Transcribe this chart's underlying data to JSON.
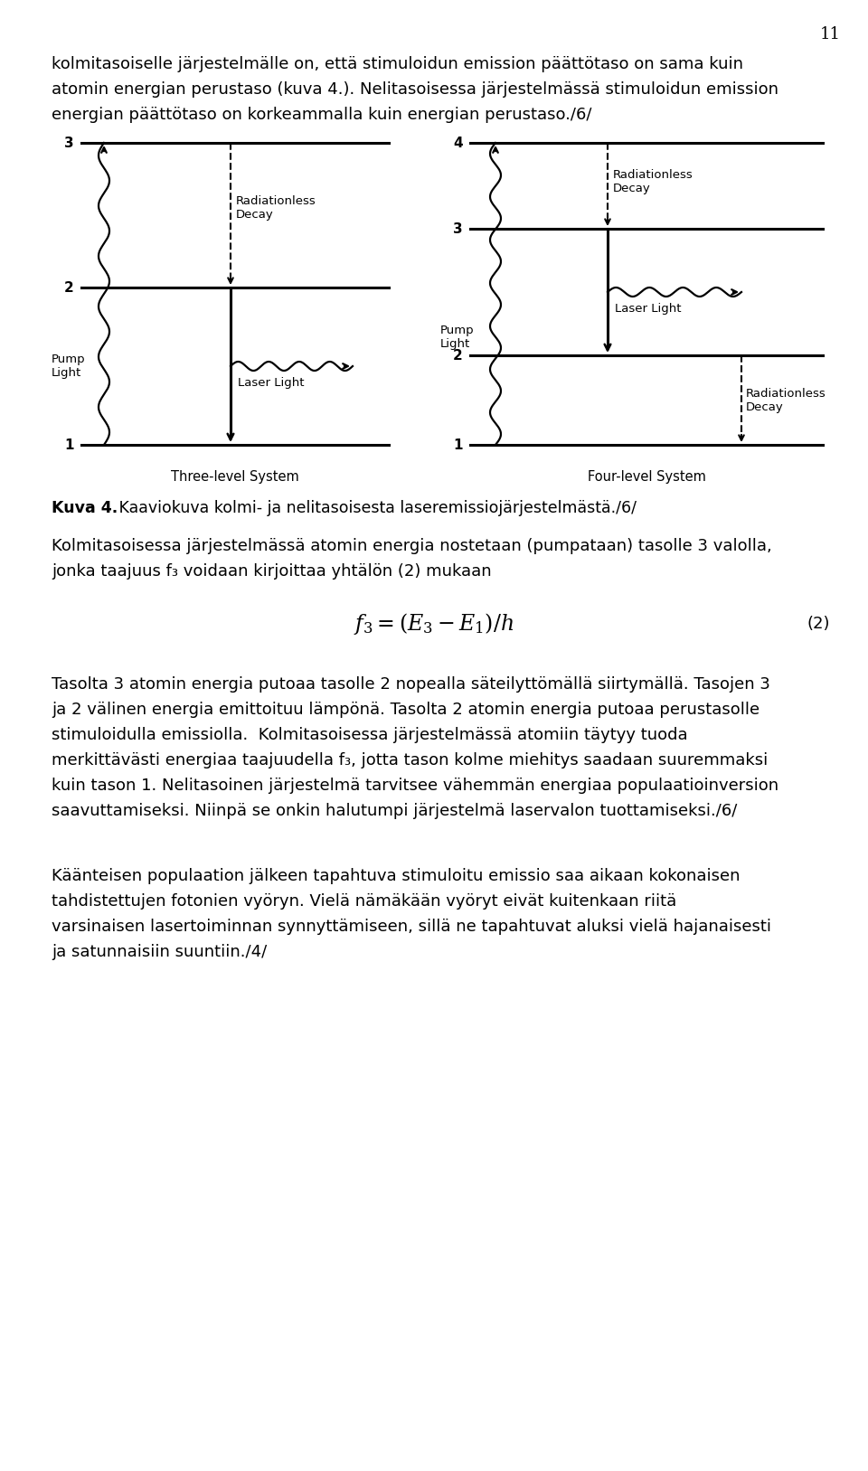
{
  "page_number": "11",
  "background_color": "#ffffff",
  "figsize": [
    9.6,
    16.27
  ],
  "dpi": 100,
  "line1": "kolmitasoiselle järjestelmälle on, että stimuloidun emission päättötaso on sama kuin",
  "line2": "atomin energian perustaso (kuva 4.). Nelitasoisessa järjestelmässä stimuloidun emission",
  "line3": "energian päättötaso on korkeammalla kuin energian perustaso./6/",
  "caption_bold": "Kuva 4.",
  "caption_rest": "   Kaaviokuva kolmi- ja nelitasoisesta laseremissiojärjestelmästä./6/",
  "para2_l1": "Kolmitasoisessa järjestelmässä atomin energia nostetaan (pumpataan) tasolle 3 valolla,",
  "para2_l2": "jonka taajuus f₃ voidaan kirjoittaa yhtälön (2) mukaan",
  "para3_lines": [
    "Tasolta 3 atomin energia putoaa tasolle 2 nopealla säteilyttömällä siirtymällä. Tasojen 3",
    "ja 2 välinen energia emittoituu lämpönä. Tasolta 2 atomin energia putoaa perustasolle",
    "stimuloidulla emissiolla.  Kolmitasoisessa järjestelmässä atomiin täytyy tuoda",
    "merkittävästi energiaa taajuudella f₃, jotta tason kolme miehitys saadaan suuremmaksi",
    "kuin tason 1. Nelitasoinen järjestelmä tarvitsee vähemmän energiaa populaatioinversion",
    "saavuttamiseksi. Niinpä se onkin halutumpi järjestelmä laservalon tuottamiseksi./6/"
  ],
  "para4_lines": [
    "Käänteisen populaation jälkeen tapahtuva stimuloitu emissio saa aikaan kokonaisen",
    "tahdistettujen fotonien vyöryn. Vielä nämäkään vyöryt eivät kuitenkaan riitä",
    "varsinaisen lasertoiminnan synnyttämiseen, sillä ne tapahtuvat aluksi vielä hajanaisesti",
    "ja satunnaisiin suuntiin./4/"
  ]
}
